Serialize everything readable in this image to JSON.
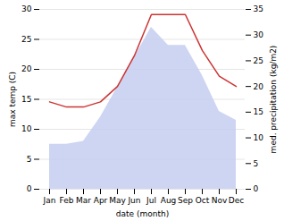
{
  "chart_data": {
    "type": "area",
    "xlabel": "date (month)",
    "ylabel": "max temp (C)",
    "y2label": "med. precipitation (kg/m2)",
    "categories": [
      "Jan",
      "Feb",
      "Mar",
      "Apr",
      "May",
      "Jun",
      "Jul",
      "Aug",
      "Sep",
      "Oct",
      "Nov",
      "Dec"
    ],
    "series": [
      {
        "type": "area",
        "color": "#c5cef0",
        "values": [
          7.5,
          7.5,
          8.0,
          12.0,
          17.0,
          22.0,
          27.0,
          24.0,
          24.0,
          19.0,
          13.0,
          11.5
        ]
      },
      {
        "type": "line",
        "axis": "y2",
        "color": "#cc3333",
        "values": [
          17.0,
          16.0,
          16.0,
          17.0,
          20.0,
          26.0,
          34.0,
          34.0,
          34.0,
          27.0,
          22.0,
          20.0
        ]
      }
    ],
    "ylim": [
      0,
      30
    ],
    "yticks": [
      0,
      5,
      10,
      15,
      20,
      25,
      30
    ],
    "y2lim": [
      0,
      35
    ],
    "y2ticks": [
      0,
      5,
      10,
      15,
      20,
      25,
      30,
      35
    ],
    "grid": true
  }
}
